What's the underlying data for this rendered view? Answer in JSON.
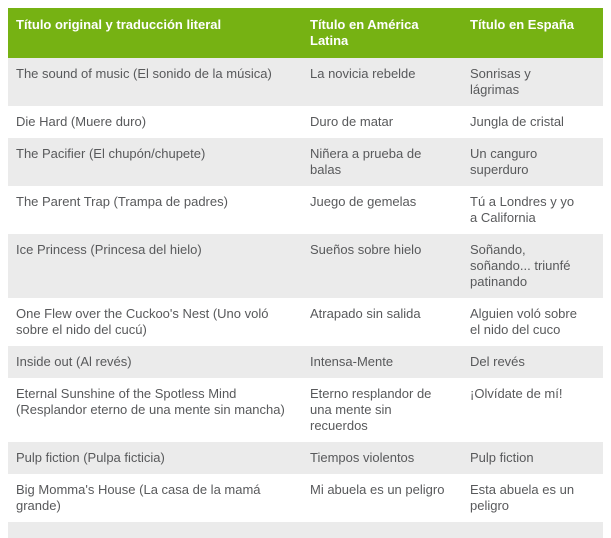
{
  "table": {
    "headers": [
      "Título original y traducción literal",
      "Título en América Latina",
      "Título en España"
    ],
    "rows": [
      [
        "The sound of music (El sonido de la música)",
        "La novicia rebelde",
        "Sonrisas y lágrimas"
      ],
      [
        "Die Hard (Muere duro)",
        "Duro de matar",
        "Jungla de cristal"
      ],
      [
        "The Pacifier (El chupón/chupete)",
        "Niñera a prueba de balas",
        "Un canguro superduro"
      ],
      [
        "The Parent Trap (Trampa de padres)",
        "Juego de gemelas",
        "Tú a Londres y yo a California"
      ],
      [
        "Ice Princess (Princesa del hielo)",
        "Sueños sobre hielo",
        "Soñando, soñando... triunfé patinando"
      ],
      [
        "One Flew over the Cuckoo's Nest (Uno voló sobre el nido del cucú)",
        "Atrapado sin salida",
        "Alguien voló sobre el nido del cuco"
      ],
      [
        "Inside out (Al revés)",
        "Intensa-Mente",
        "Del revés"
      ],
      [
        "Eternal Sunshine of the Spotless Mind (Resplandor eterno de una mente sin mancha)",
        "Eterno resplandor de una mente sin recuerdos",
        "¡Olvídate de mí!"
      ],
      [
        "Pulp fiction (Pulpa ficticia)",
        "Tiempos violentos",
        "Pulp fiction"
      ],
      [
        "Big Momma's House (La casa de la mamá grande)",
        "Mi abuela es un peligro",
        "Esta abuela es un peligro"
      ]
    ],
    "colors": {
      "header_bg": "#76b213",
      "header_text": "#ffffff",
      "row_alt_bg": "#ebebeb",
      "row_bg": "#ffffff",
      "body_text": "#58595b"
    }
  }
}
